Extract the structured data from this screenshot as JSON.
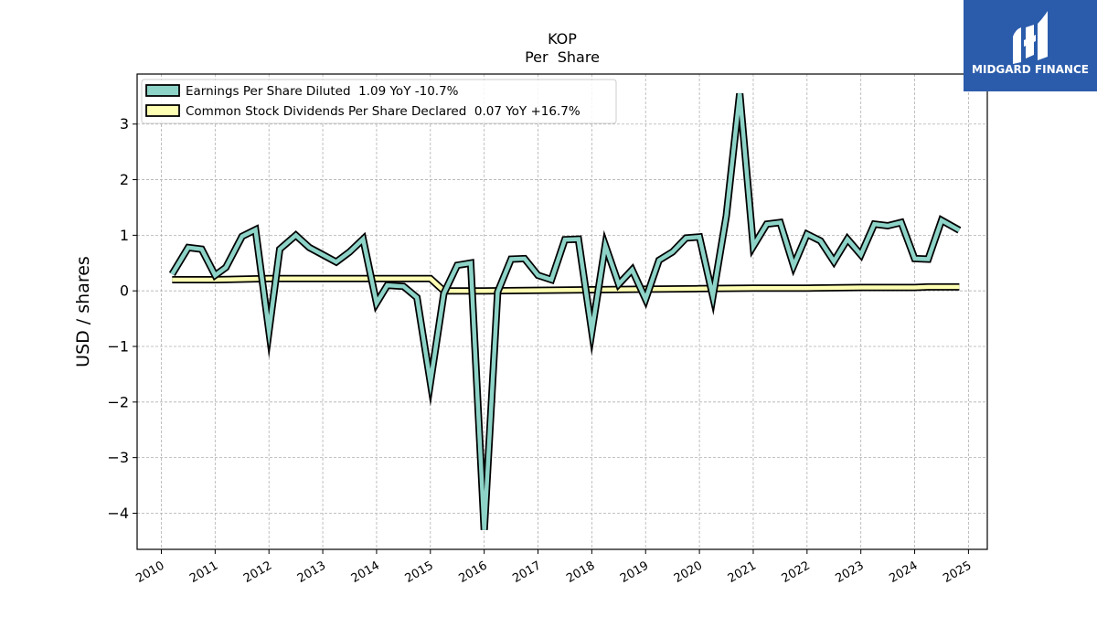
{
  "chart_data": {
    "type": "line",
    "title": "KOP",
    "subtitle": "Per  Share",
    "xlabel": "",
    "ylabel": "USD / shares",
    "xlim": [
      2009.55,
      2025.35
    ],
    "ylim": [
      -4.65,
      3.9
    ],
    "grid": true,
    "legend_position": "top-left",
    "x_ticks": [
      2010,
      2011,
      2012,
      2013,
      2014,
      2015,
      2016,
      2017,
      2018,
      2019,
      2020,
      2021,
      2022,
      2023,
      2024,
      2025
    ],
    "x_tick_labels": [
      "2010",
      "2011",
      "2012",
      "2013",
      "2014",
      "2015",
      "2016",
      "2017",
      "2018",
      "2019",
      "2020",
      "2021",
      "2022",
      "2023",
      "2024",
      "2025"
    ],
    "y_ticks": [
      -4,
      -3,
      -2,
      -1,
      0,
      1,
      2,
      3
    ],
    "y_tick_labels": [
      "−4",
      "−3",
      "−2",
      "−1",
      "0",
      "1",
      "2",
      "3"
    ],
    "series": [
      {
        "name": "Earnings Per Share Diluted  1.09 YoY -10.7%",
        "color": "#8dd3c7",
        "x": [
          2010.2,
          2010.5,
          2010.75,
          2011.0,
          2011.2,
          2011.5,
          2011.75,
          2012.0,
          2012.2,
          2012.5,
          2012.75,
          2013.0,
          2013.25,
          2013.5,
          2013.75,
          2014.0,
          2014.2,
          2014.5,
          2014.75,
          2015.0,
          2015.25,
          2015.5,
          2015.75,
          2016.0,
          2016.25,
          2016.5,
          2016.75,
          2017.0,
          2017.25,
          2017.5,
          2017.75,
          2018.0,
          2018.25,
          2018.5,
          2018.75,
          2019.0,
          2019.25,
          2019.5,
          2019.75,
          2020.0,
          2020.25,
          2020.5,
          2020.75,
          2021.0,
          2021.25,
          2021.5,
          2021.75,
          2022.0,
          2022.25,
          2022.5,
          2022.75,
          2023.0,
          2023.25,
          2023.5,
          2023.75,
          2024.0,
          2024.25,
          2024.5,
          2024.83
        ],
        "values": [
          0.3,
          0.78,
          0.75,
          0.28,
          0.42,
          0.98,
          1.1,
          -0.72,
          0.75,
          1.0,
          0.78,
          0.65,
          0.52,
          0.7,
          0.93,
          -0.22,
          0.1,
          0.08,
          -0.12,
          -1.65,
          -0.05,
          0.46,
          0.5,
          -4.3,
          -0.02,
          0.57,
          0.58,
          0.28,
          0.2,
          0.92,
          0.93,
          -0.73,
          0.82,
          0.12,
          0.38,
          -0.15,
          0.55,
          0.7,
          0.95,
          0.97,
          -0.1,
          1.35,
          3.55,
          0.8,
          1.2,
          1.23,
          0.45,
          1.02,
          0.9,
          0.53,
          0.93,
          0.65,
          1.2,
          1.17,
          1.23,
          0.58,
          0.57,
          1.27,
          1.09
        ]
      },
      {
        "name": "Common Stock Dividends Per Share Declared  0.07 YoY +16.7%",
        "color": "#ffffb3",
        "x": [
          2010.2,
          2011.0,
          2012.0,
          2013.25,
          2014.0,
          2014.5,
          2015.0,
          2015.25,
          2016.0,
          2017.0,
          2018.0,
          2019.0,
          2020.0,
          2021.0,
          2022.0,
          2023.0,
          2024.0,
          2024.25,
          2024.83
        ],
        "values": [
          0.2,
          0.2,
          0.22,
          0.22,
          0.22,
          0.22,
          0.22,
          0.0,
          0.0,
          0.01,
          0.02,
          0.03,
          0.04,
          0.05,
          0.05,
          0.06,
          0.06,
          0.07,
          0.07
        ]
      }
    ]
  },
  "logo": {
    "text": "MIDGARD FINANCE",
    "background": "#2b5cab"
  }
}
